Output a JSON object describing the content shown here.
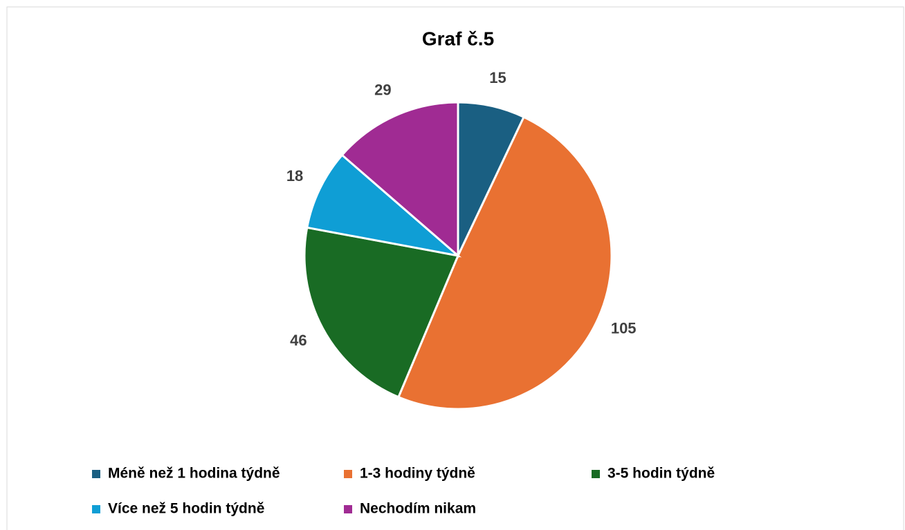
{
  "chart_data": {
    "type": "pie",
    "title": "Graf č.5",
    "categories": [
      "Méně než 1 hodina týdně",
      "1-3 hodiny týdně",
      "3-5 hodin týdně",
      "Více než 5 hodin týdně",
      "Nechodím nikam"
    ],
    "values": [
      15,
      105,
      46,
      18,
      29
    ],
    "colors": [
      "#1a5f82",
      "#e97132",
      "#196b24",
      "#0f9ed5",
      "#a02b93"
    ],
    "legend": "bottom"
  }
}
